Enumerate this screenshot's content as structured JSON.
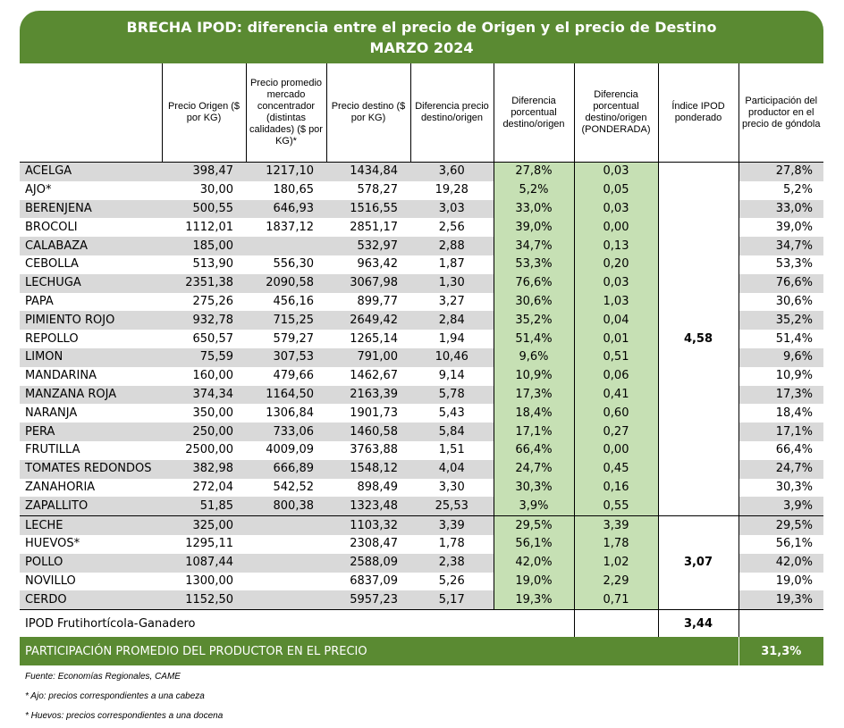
{
  "title": {
    "line1": "BRECHA IPOD: diferencia entre el precio de Origen y el precio de Destino",
    "line2": "MARZO 2024"
  },
  "headers": [
    "",
    "Precio Origen ($ por KG)",
    "Precio promedio mercado concentrador (distintas calidades) ($ por KG)*",
    "Precio destino ($ por KG)",
    "Diferencia precio destino/origen",
    "Diferencia porcentual destino/origen",
    "Diferencia porcentual destino/origen (PONDERADA)",
    "Índice IPOD ponderado",
    "Participación del productor en el precio de góndola"
  ],
  "groups": [
    {
      "ipod": "4,58",
      "rows": [
        {
          "name": "ACELGA",
          "origen": "398,47",
          "mercado": "1217,10",
          "destino": "1434,84",
          "dif": "3,60",
          "pct": "27,8%",
          "pond": "0,03",
          "part": "27,8%"
        },
        {
          "name": "AJO*",
          "origen": "30,00",
          "mercado": "180,65",
          "destino": "578,27",
          "dif": "19,28",
          "pct": "5,2%",
          "pond": "0,05",
          "part": "5,2%"
        },
        {
          "name": "BERENJENA",
          "origen": "500,55",
          "mercado": "646,93",
          "destino": "1516,55",
          "dif": "3,03",
          "pct": "33,0%",
          "pond": "0,03",
          "part": "33,0%"
        },
        {
          "name": "BROCOLI",
          "origen": "1112,01",
          "mercado": "1837,12",
          "destino": "2851,17",
          "dif": "2,56",
          "pct": "39,0%",
          "pond": "0,00",
          "part": "39,0%"
        },
        {
          "name": "CALABAZA",
          "origen": "185,00",
          "mercado": "",
          "destino": "532,97",
          "dif": "2,88",
          "pct": "34,7%",
          "pond": "0,13",
          "part": "34,7%"
        },
        {
          "name": "CEBOLLA",
          "origen": "513,90",
          "mercado": "556,30",
          "destino": "963,42",
          "dif": "1,87",
          "pct": "53,3%",
          "pond": "0,20",
          "part": "53,3%"
        },
        {
          "name": "LECHUGA",
          "origen": "2351,38",
          "mercado": "2090,58",
          "destino": "3067,98",
          "dif": "1,30",
          "pct": "76,6%",
          "pond": "0,03",
          "part": "76,6%"
        },
        {
          "name": "PAPA",
          "origen": "275,26",
          "mercado": "456,16",
          "destino": "899,77",
          "dif": "3,27",
          "pct": "30,6%",
          "pond": "1,03",
          "part": "30,6%"
        },
        {
          "name": "PIMIENTO ROJO",
          "origen": "932,78",
          "mercado": "715,25",
          "destino": "2649,42",
          "dif": "2,84",
          "pct": "35,2%",
          "pond": "0,04",
          "part": "35,2%"
        },
        {
          "name": "REPOLLO",
          "origen": "650,57",
          "mercado": "579,27",
          "destino": "1265,14",
          "dif": "1,94",
          "pct": "51,4%",
          "pond": "0,01",
          "part": "51,4%"
        },
        {
          "name": "LIMON",
          "origen": "75,59",
          "mercado": "307,53",
          "destino": "791,00",
          "dif": "10,46",
          "pct": "9,6%",
          "pond": "0,51",
          "part": "9,6%"
        },
        {
          "name": "MANDARINA",
          "origen": "160,00",
          "mercado": "479,66",
          "destino": "1462,67",
          "dif": "9,14",
          "pct": "10,9%",
          "pond": "0,06",
          "part": "10,9%"
        },
        {
          "name": "MANZANA ROJA",
          "origen": "374,34",
          "mercado": "1164,50",
          "destino": "2163,39",
          "dif": "5,78",
          "pct": "17,3%",
          "pond": "0,41",
          "part": "17,3%"
        },
        {
          "name": "NARANJA",
          "origen": "350,00",
          "mercado": "1306,84",
          "destino": "1901,73",
          "dif": "5,43",
          "pct": "18,4%",
          "pond": "0,60",
          "part": "18,4%"
        },
        {
          "name": "PERA",
          "origen": "250,00",
          "mercado": "733,06",
          "destino": "1460,58",
          "dif": "5,84",
          "pct": "17,1%",
          "pond": "0,27",
          "part": "17,1%"
        },
        {
          "name": "FRUTILLA",
          "origen": "2500,00",
          "mercado": "4009,09",
          "destino": "3763,88",
          "dif": "1,51",
          "pct": "66,4%",
          "pond": "0,00",
          "part": "66,4%"
        },
        {
          "name": "TOMATES REDONDOS",
          "origen": "382,98",
          "mercado": "666,89",
          "destino": "1548,12",
          "dif": "4,04",
          "pct": "24,7%",
          "pond": "0,45",
          "part": "24,7%"
        },
        {
          "name": "ZANAHORIA",
          "origen": "272,04",
          "mercado": "542,52",
          "destino": "898,49",
          "dif": "3,30",
          "pct": "30,3%",
          "pond": "0,16",
          "part": "30,3%"
        },
        {
          "name": "ZAPALLITO",
          "origen": "51,85",
          "mercado": "800,38",
          "destino": "1323,48",
          "dif": "25,53",
          "pct": "3,9%",
          "pond": "0,55",
          "part": "3,9%"
        }
      ]
    },
    {
      "ipod": "3,07",
      "rows": [
        {
          "name": "LECHE",
          "origen": "325,00",
          "mercado": "",
          "destino": "1103,32",
          "dif": "3,39",
          "pct": "29,5%",
          "pond": "3,39",
          "part": "29,5%"
        },
        {
          "name": "HUEVOS*",
          "origen": "1295,11",
          "mercado": "",
          "destino": "2308,47",
          "dif": "1,78",
          "pct": "56,1%",
          "pond": "1,78",
          "part": "56,1%"
        },
        {
          "name": "POLLO",
          "origen": "1087,44",
          "mercado": "",
          "destino": "2588,09",
          "dif": "2,38",
          "pct": "42,0%",
          "pond": "1,02",
          "part": "42,0%"
        },
        {
          "name": "NOVILLO",
          "origen": "1300,00",
          "mercado": "",
          "destino": "6837,09",
          "dif": "5,26",
          "pct": "19,0%",
          "pond": "2,29",
          "part": "19,0%"
        },
        {
          "name": "CERDO",
          "origen": "1152,50",
          "mercado": "",
          "destino": "5957,23",
          "dif": "5,17",
          "pct": "19,3%",
          "pond": "0,71",
          "part": "19,3%"
        }
      ]
    }
  ],
  "summary": {
    "label": "IPOD Frutihortícola-Ganadero",
    "value": "3,44"
  },
  "footer": {
    "label": "PARTICIPACIÓN PROMEDIO DEL PRODUCTOR EN EL PRECIO",
    "value": "31,3%"
  },
  "notes": [
    "Fuente: Economías Regionales, CAME",
    "* Ajo: precios correspondientes a una cabeza",
    "* Huevos: precios correspondientes a una docena"
  ],
  "colors": {
    "header_green": "#5a8a32",
    "light_green": "#c6e0b4",
    "row_gray": "#d9d9d9"
  }
}
